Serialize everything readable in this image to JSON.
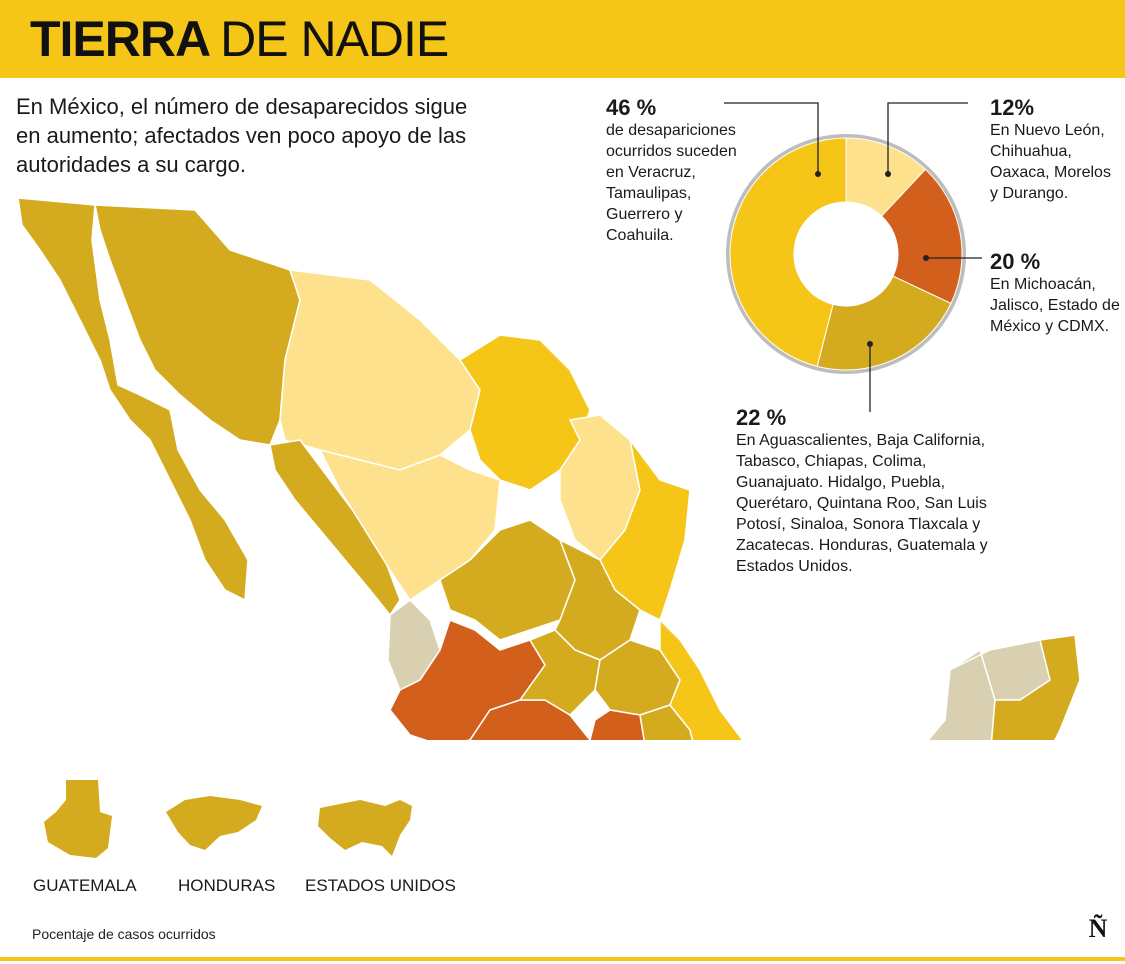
{
  "header": {
    "title_bold": "TIERRA",
    "title_light": "DE NADIE",
    "background_color": "#f5c518"
  },
  "subtitle": "En México, el número de desaparecidos sigue en aumento; afectados ven poco apoyo de las autoridades a su cargo.",
  "chart_data": {
    "type": "pie",
    "values": [
      46,
      12,
      20,
      22
    ],
    "slices": [
      {
        "value": 46,
        "label_pct": "46 %",
        "text": "de desapariciones ocurridos suceden en Veracruz, Tamaulipas, Guerrero y Coahuila.",
        "color": "#f5c518"
      },
      {
        "value": 12,
        "label_pct": "12%",
        "text": "En Nuevo León, Chihuahua, Oaxaca, Morelos y Durango.",
        "color": "#fde18c"
      },
      {
        "value": 20,
        "label_pct": "20 %",
        "text": "En Michoacán, Jalisco, Estado de México y CDMX.",
        "color": "#d2601c"
      },
      {
        "value": 22,
        "label_pct": "22 %",
        "text": "En Aguascalientes, Baja California, Tabasco, Chiapas, Colima, Guanajuato. Hidalgo, Puebla, Querétaro, Quintana Roo, San Luis Potosí, Sinaloa, Sonora Tlaxcala y Zacatecas. Honduras, Guatemala y Estados Unidos.",
        "color": "#d4ab1e"
      }
    ]
  },
  "map_colors": {
    "gold": "#f5c518",
    "light": "#fde18c",
    "orange": "#d2601c",
    "mustard": "#d4ab1e",
    "gray": "#d8d0b0"
  },
  "countries": [
    {
      "name": "GUATEMALA",
      "icon": "guatemala-icon"
    },
    {
      "name": "HONDURAS",
      "icon": "honduras-icon"
    },
    {
      "name": "ESTADOS UNIDOS",
      "icon": "usa-icon"
    }
  ],
  "footnote": "Pocentaje de casos ocurridos",
  "logo": "Ñ"
}
